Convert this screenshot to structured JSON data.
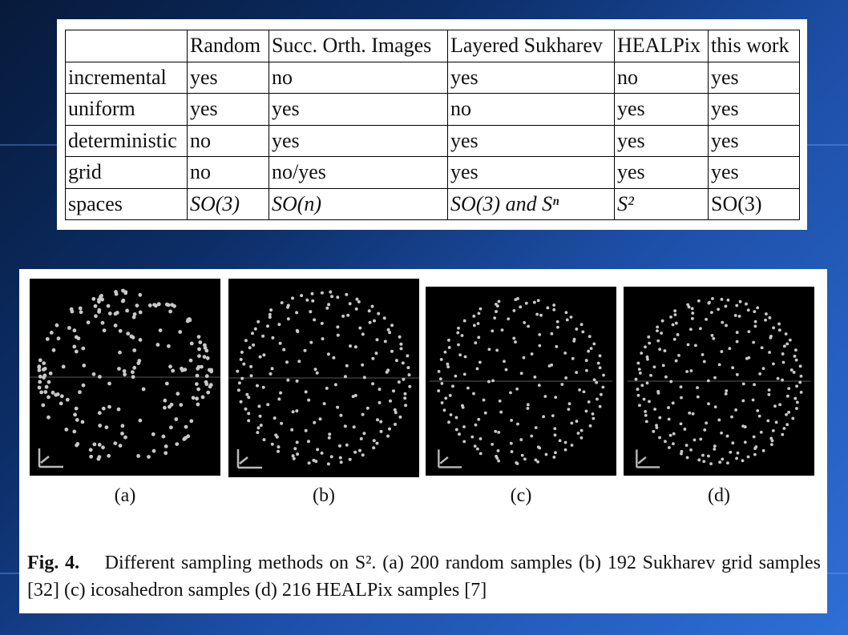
{
  "table": {
    "headers": [
      "",
      "Random",
      "Succ. Orth. Images",
      "Layered Sukharev",
      "HEALPix",
      "this work"
    ],
    "rows": [
      [
        "incremental",
        "yes",
        "no",
        "yes",
        "no",
        "yes"
      ],
      [
        "uniform",
        "yes",
        "yes",
        "no",
        "yes",
        "yes"
      ],
      [
        "deterministic",
        "no",
        "yes",
        "yes",
        "yes",
        "yes"
      ],
      [
        "grid",
        "no",
        "no/yes",
        "yes",
        "yes",
        "yes"
      ],
      [
        "spaces",
        "SO(3)",
        "SO(n)",
        "SO(3) and Sⁿ",
        "S²",
        "SO(3)"
      ]
    ]
  },
  "figure": {
    "subfigures": [
      {
        "label": "(a)",
        "samples": 200,
        "method": "random"
      },
      {
        "label": "(b)",
        "samples": 192,
        "method": "sukharev"
      },
      {
        "label": "(c)",
        "samples": null,
        "method": "icosahedron"
      },
      {
        "label": "(d)",
        "samples": 216,
        "method": "healpix"
      }
    ],
    "caption_figno": "Fig. 4.",
    "caption_text": "Different sampling methods on S². (a) 200 random samples (b) 192 Sukharev grid samples [32] (c) icosahedron samples (d) 216 HEALPix samples [7]"
  },
  "colors": {
    "background": "#0c2d66",
    "panel": "#ffffff",
    "dots": "#c8c8c8"
  }
}
